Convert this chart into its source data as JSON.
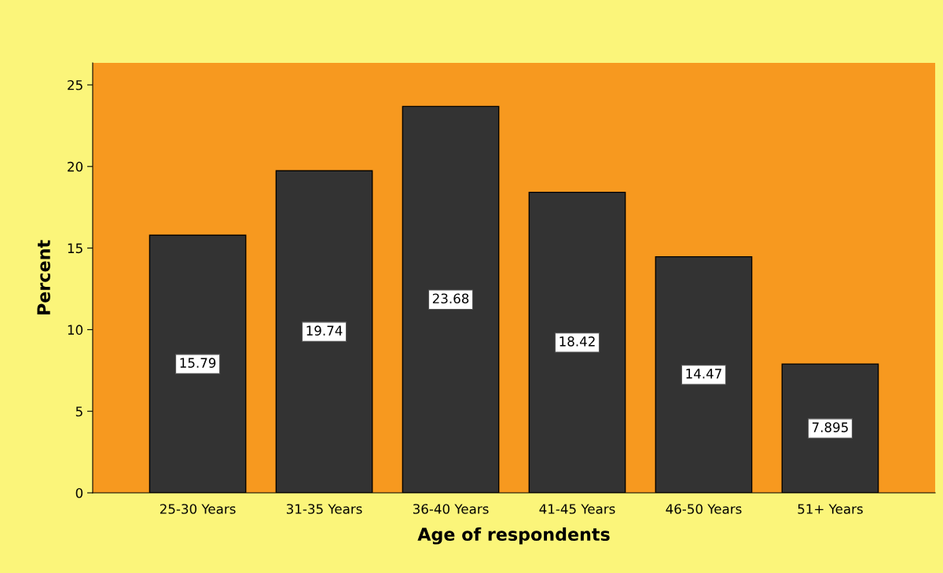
{
  "chart_data": {
    "type": "bar",
    "xlabel": "Age of respondents",
    "ylabel": "Percent",
    "categories": [
      "25-30 Years",
      "31-35 Years",
      "36-40 Years",
      "41-45 Years",
      "46-50 Years",
      "51+ Years"
    ],
    "values": [
      15.79,
      19.74,
      23.68,
      18.42,
      14.47,
      7.895
    ],
    "color": "#333333",
    "ylim": [
      0,
      26.35
    ],
    "yticks": [
      0,
      5,
      10,
      15,
      20,
      25
    ],
    "grid": false,
    "data_labels": true
  }
}
